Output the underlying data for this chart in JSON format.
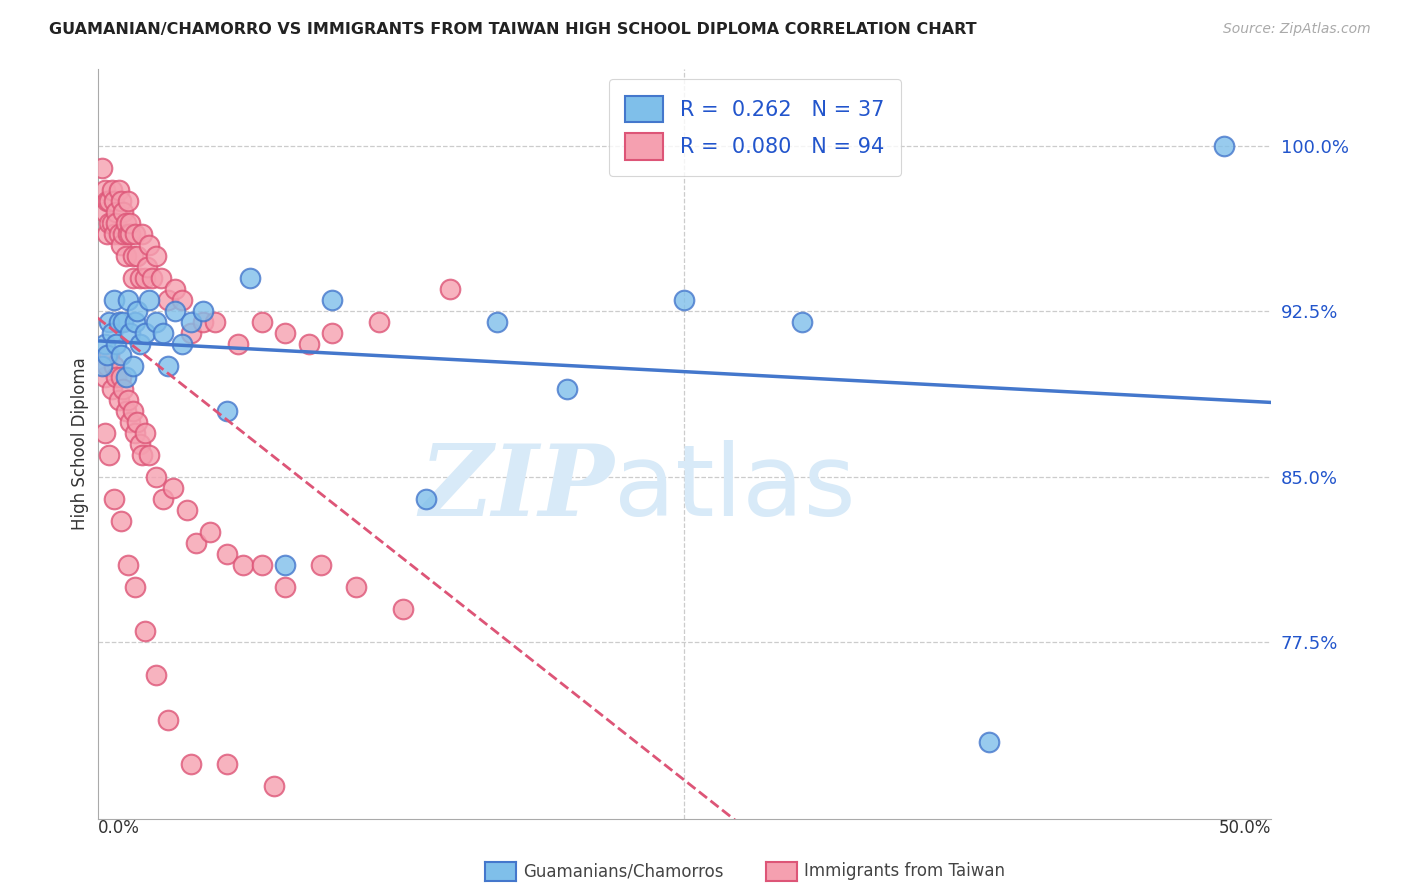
{
  "title": "GUAMANIAN/CHAMORRO VS IMMIGRANTS FROM TAIWAN HIGH SCHOOL DIPLOMA CORRELATION CHART",
  "source": "Source: ZipAtlas.com",
  "ylabel": "High School Diploma",
  "ytick_labels": [
    "77.5%",
    "85.0%",
    "92.5%",
    "100.0%"
  ],
  "ytick_values": [
    0.775,
    0.85,
    0.925,
    1.0
  ],
  "xlim": [
    0.0,
    0.5
  ],
  "ylim": [
    0.695,
    1.035
  ],
  "legend_r1": "0.262",
  "legend_n1": "37",
  "legend_r2": "0.080",
  "legend_n2": "94",
  "color_blue": "#7fbfea",
  "color_blue_line": "#4477cc",
  "color_pink": "#f5a0b0",
  "color_pink_line": "#dd5577",
  "watermark_zip": "ZIP",
  "watermark_atlas": "atlas",
  "watermark_color": "#d8eaf8",
  "blue_scatter_x": [
    0.002,
    0.003,
    0.004,
    0.005,
    0.006,
    0.007,
    0.008,
    0.009,
    0.01,
    0.011,
    0.012,
    0.013,
    0.014,
    0.015,
    0.016,
    0.017,
    0.018,
    0.02,
    0.022,
    0.025,
    0.028,
    0.03,
    0.033,
    0.036,
    0.04,
    0.045,
    0.055,
    0.065,
    0.08,
    0.1,
    0.14,
    0.17,
    0.2,
    0.25,
    0.3,
    0.38,
    0.48
  ],
  "blue_scatter_y": [
    0.9,
    0.91,
    0.905,
    0.92,
    0.915,
    0.93,
    0.91,
    0.92,
    0.905,
    0.92,
    0.895,
    0.93,
    0.915,
    0.9,
    0.92,
    0.925,
    0.91,
    0.915,
    0.93,
    0.92,
    0.915,
    0.9,
    0.925,
    0.91,
    0.92,
    0.925,
    0.88,
    0.94,
    0.81,
    0.93,
    0.84,
    0.92,
    0.89,
    0.93,
    0.92,
    0.73,
    1.0
  ],
  "pink_scatter_x": [
    0.002,
    0.003,
    0.003,
    0.004,
    0.004,
    0.005,
    0.005,
    0.006,
    0.006,
    0.007,
    0.007,
    0.008,
    0.008,
    0.009,
    0.009,
    0.01,
    0.01,
    0.011,
    0.011,
    0.012,
    0.012,
    0.013,
    0.013,
    0.014,
    0.014,
    0.015,
    0.015,
    0.016,
    0.017,
    0.018,
    0.019,
    0.02,
    0.021,
    0.022,
    0.023,
    0.025,
    0.027,
    0.03,
    0.033,
    0.036,
    0.04,
    0.045,
    0.05,
    0.06,
    0.07,
    0.08,
    0.09,
    0.1,
    0.12,
    0.15,
    0.003,
    0.004,
    0.005,
    0.006,
    0.007,
    0.008,
    0.009,
    0.01,
    0.011,
    0.012,
    0.013,
    0.014,
    0.015,
    0.016,
    0.017,
    0.018,
    0.019,
    0.02,
    0.022,
    0.025,
    0.028,
    0.032,
    0.038,
    0.042,
    0.048,
    0.055,
    0.062,
    0.07,
    0.08,
    0.095,
    0.11,
    0.13,
    0.003,
    0.005,
    0.007,
    0.01,
    0.013,
    0.016,
    0.02,
    0.025,
    0.03,
    0.04,
    0.055,
    0.075
  ],
  "pink_scatter_y": [
    0.99,
    0.98,
    0.97,
    0.975,
    0.96,
    0.975,
    0.965,
    0.98,
    0.965,
    0.96,
    0.975,
    0.97,
    0.965,
    0.98,
    0.96,
    0.975,
    0.955,
    0.96,
    0.97,
    0.95,
    0.965,
    0.96,
    0.975,
    0.96,
    0.965,
    0.95,
    0.94,
    0.96,
    0.95,
    0.94,
    0.96,
    0.94,
    0.945,
    0.955,
    0.94,
    0.95,
    0.94,
    0.93,
    0.935,
    0.93,
    0.915,
    0.92,
    0.92,
    0.91,
    0.92,
    0.915,
    0.91,
    0.915,
    0.92,
    0.935,
    0.895,
    0.9,
    0.905,
    0.89,
    0.9,
    0.895,
    0.885,
    0.895,
    0.89,
    0.88,
    0.885,
    0.875,
    0.88,
    0.87,
    0.875,
    0.865,
    0.86,
    0.87,
    0.86,
    0.85,
    0.84,
    0.845,
    0.835,
    0.82,
    0.825,
    0.815,
    0.81,
    0.81,
    0.8,
    0.81,
    0.8,
    0.79,
    0.87,
    0.86,
    0.84,
    0.83,
    0.81,
    0.8,
    0.78,
    0.76,
    0.74,
    0.72,
    0.72,
    0.71
  ]
}
